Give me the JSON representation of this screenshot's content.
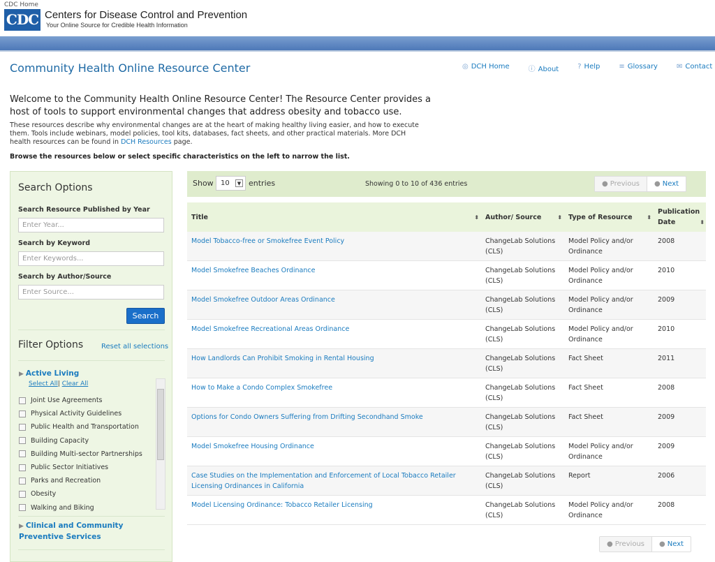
{
  "header": {
    "cdc_home": "CDC Home",
    "logo_text": "CDC",
    "org_name": "Centers for Disease Control and Prevention",
    "tagline": "Your Online Source for Credible Health Information"
  },
  "page_title": "Community Health Online Resource Center",
  "top_nav": [
    {
      "icon": "target-icon",
      "glyph": "◎",
      "label": "DCH Home"
    },
    {
      "icon": "info-icon",
      "glyph": "ⓘ",
      "label": "About"
    },
    {
      "icon": "help-icon",
      "glyph": "?",
      "label": "Help"
    },
    {
      "icon": "list-icon",
      "glyph": "≡",
      "label": "Glossary"
    },
    {
      "icon": "mail-icon",
      "glyph": "✉",
      "label": "Contact"
    }
  ],
  "intro": {
    "welcome": "Welcome to the Community Health Online Resource Center! The Resource Center provides a host of tools to support environmental changes that address obesity and tobacco use.",
    "desc_before": "These resources describe why environmental changes are at the heart of making healthy living easier, and how to execute them. Tools include webinars, model policies, tool kits, databases, fact sheets, and other practical materials. More DCH health resources can be found in ",
    "desc_link": "DCH Resources",
    "desc_after": " page.",
    "browse": "Browse the resources below or select specific characteristics on the left to narrow the list."
  },
  "search": {
    "heading": "Search Options",
    "year_label": "Search Resource Published by Year",
    "year_placeholder": "Enter Year...",
    "keyword_label": "Search by Keyword",
    "keyword_placeholder": "Enter Keywords...",
    "author_label": "Search by Author/Source",
    "author_placeholder": "Enter Source...",
    "button": "Search"
  },
  "filter": {
    "heading": "Filter Options",
    "reset": "Reset all selections",
    "category1": "Active Living",
    "select_all": "Select All",
    "clear_all": "Clear All",
    "items": [
      "Joint Use Agreements",
      "Physical Activity Guidelines",
      "Public Health and Transportation",
      "Building Capacity",
      "Building Multi-sector Partnerships",
      "Public Sector Initiatives",
      "Parks and Recreation",
      "Obesity",
      "Walking and Biking"
    ],
    "category2": "Clinical and Community Preventive Services"
  },
  "table_controls": {
    "show": "Show",
    "entries_value": "10",
    "entries": "entries",
    "info": "Showing 0 to 10 of 436 entries",
    "previous": "Previous",
    "next": "Next"
  },
  "table": {
    "headers": [
      "Title",
      "Author/ Source",
      "Type of Resource",
      "Publication Date"
    ],
    "rows": [
      [
        "Model Tobacco-free or Smokefree Event Policy",
        "ChangeLab Solutions (CLS)",
        "Model Policy and/or Ordinance",
        "2008"
      ],
      [
        "Model Smokefree Beaches Ordinance",
        "ChangeLab Solutions (CLS)",
        "Model Policy and/or Ordinance",
        "2010"
      ],
      [
        "Model Smokefree Outdoor Areas Ordinance",
        "ChangeLab Solutions (CLS)",
        "Model Policy and/or Ordinance",
        "2009"
      ],
      [
        "Model Smokefree Recreational Areas Ordinance",
        "ChangeLab Solutions (CLS)",
        "Model Policy and/or Ordinance",
        "2010"
      ],
      [
        "How Landlords Can Prohibit Smoking in Rental Housing",
        "ChangeLab Solutions (CLS)",
        "Fact Sheet",
        "2011"
      ],
      [
        "How to Make a Condo Complex Smokefree",
        "ChangeLab Solutions (CLS)",
        "Fact Sheet",
        "2008"
      ],
      [
        "Options for Condo Owners Suffering from Drifting Secondhand Smoke",
        "ChangeLab Solutions (CLS)",
        "Fact Sheet",
        "2009"
      ],
      [
        "Model Smokefree Housing Ordinance",
        "ChangeLab Solutions (CLS)",
        "Model Policy and/or Ordinance",
        "2009"
      ],
      [
        "Case Studies on the Implementation and Enforcement of Local Tobacco Retailer Licensing Ordinances in California",
        "ChangeLab Solutions (CLS)",
        "Report",
        "2006"
      ],
      [
        "Model Licensing Ordinance: Tobacco Retailer Licensing",
        "ChangeLab Solutions (CLS)",
        "Model Policy and/or Ordinance",
        "2008"
      ]
    ]
  },
  "colors": {
    "brand_blue": "#1f5fa8",
    "link": "#1a7bbf",
    "panel_green": "#eef6e4",
    "button_blue": "#1a6fc9"
  }
}
